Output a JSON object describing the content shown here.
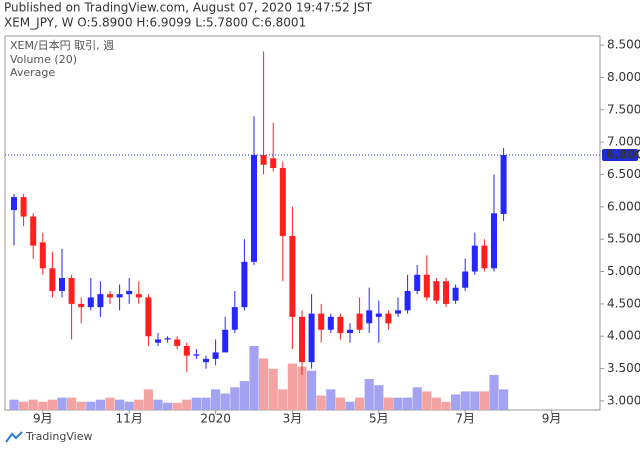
{
  "chart_data": {
    "type": "candlestick",
    "title": "Published on TradingView.com, August 07, 2020 19:47:52 JST",
    "subtitle": "XEM_JPY, W O:5.8900 H:6.9099 L:5.7800 C:6.8001",
    "legend": [
      "XEM/日本円 取引, 週",
      "Volume (20)",
      "Average"
    ],
    "brand": "TradingView",
    "categories": [
      null,
      null,
      null,
      "9月",
      null,
      null,
      null,
      null,
      null,
      null,
      null,
      null,
      "11月",
      null,
      null,
      null,
      null,
      null,
      null,
      null,
      null,
      "2020",
      null,
      null,
      null,
      null,
      null,
      null,
      null,
      "3月",
      null,
      null,
      null,
      null,
      null,
      null,
      null,
      null,
      "5月",
      null,
      null,
      null,
      null,
      null,
      null,
      null,
      null,
      "7月",
      null,
      null,
      null,
      null,
      null,
      null,
      null,
      null,
      "9月"
    ],
    "open": [
      5.95,
      6.15,
      5.85,
      5.45,
      5.05,
      4.7,
      4.9,
      4.5,
      4.45,
      4.45,
      4.65,
      4.6,
      4.65,
      4.65,
      4.6,
      3.9,
      3.95,
      3.95,
      3.85,
      3.7,
      3.6,
      3.65,
      3.75,
      4.1,
      4.45,
      5.15,
      6.8,
      6.75,
      6.6,
      5.55,
      4.3,
      3.6,
      4.35,
      4.1,
      4.3,
      4.05,
      4.35,
      4.2,
      4.3,
      4.35,
      4.35,
      4.4,
      4.7,
      4.95,
      4.85,
      4.85,
      4.55,
      4.75,
      5.0,
      5.4,
      5.05,
      5.89,
      null,
      null,
      null,
      null,
      null
    ],
    "high": [
      6.2,
      6.2,
      5.9,
      5.6,
      5.3,
      5.35,
      4.95,
      4.6,
      4.9,
      4.85,
      4.7,
      4.8,
      4.9,
      4.85,
      4.65,
      4.05,
      4.0,
      4.0,
      3.9,
      3.8,
      3.7,
      3.95,
      4.3,
      4.7,
      5.5,
      7.4,
      8.4,
      7.3,
      6.7,
      6.0,
      4.4,
      4.65,
      4.5,
      4.35,
      4.35,
      4.2,
      4.6,
      4.75,
      4.55,
      4.4,
      4.6,
      4.95,
      5.1,
      5.25,
      4.9,
      4.9,
      4.8,
      5.2,
      5.6,
      5.5,
      6.5,
      6.9099,
      null,
      null,
      null,
      null,
      null
    ],
    "low": [
      5.4,
      5.7,
      5.2,
      4.95,
      4.6,
      4.6,
      3.95,
      4.2,
      4.4,
      4.3,
      4.5,
      4.4,
      4.5,
      4.5,
      3.85,
      3.85,
      3.9,
      3.8,
      3.45,
      3.65,
      3.5,
      3.55,
      3.75,
      4.05,
      4.4,
      5.1,
      6.5,
      6.55,
      4.85,
      3.8,
      3.4,
      3.5,
      3.9,
      4.05,
      3.95,
      3.9,
      4.05,
      4.05,
      3.9,
      4.1,
      4.3,
      4.35,
      4.65,
      4.55,
      4.5,
      4.45,
      4.5,
      4.7,
      4.95,
      5.0,
      5.0,
      5.78,
      null,
      null,
      null,
      null,
      null
    ],
    "close": [
      6.15,
      5.85,
      5.4,
      5.05,
      4.7,
      4.9,
      4.5,
      4.45,
      4.6,
      4.65,
      4.6,
      4.65,
      4.7,
      4.6,
      4.0,
      3.95,
      3.97,
      3.85,
      3.7,
      3.72,
      3.65,
      3.75,
      4.1,
      4.45,
      5.15,
      6.8,
      6.65,
      6.6,
      5.55,
      4.3,
      3.6,
      4.35,
      4.1,
      4.3,
      4.05,
      4.1,
      4.1,
      4.4,
      4.35,
      4.2,
      4.4,
      4.7,
      4.95,
      4.6,
      4.55,
      4.5,
      4.75,
      5.0,
      5.4,
      5.05,
      5.9,
      6.8001,
      null,
      null,
      null,
      null,
      null
    ],
    "volume": [
      10,
      8,
      10,
      8,
      10,
      12,
      12,
      8,
      8,
      10,
      12,
      10,
      8,
      10,
      20,
      10,
      7,
      7,
      10,
      12,
      12,
      20,
      16,
      22,
      28,
      62,
      50,
      40,
      20,
      45,
      42,
      38,
      14,
      20,
      12,
      8,
      12,
      30,
      24,
      12,
      12,
      12,
      22,
      18,
      12,
      8,
      15,
      18,
      18,
      18,
      34,
      20,
      null,
      null,
      null,
      null,
      null
    ],
    "up_color": "#2626ff",
    "down_color": "#ff1f1f",
    "up_volume_color": "#a3a3f2",
    "down_volume_color": "#f4a3a3",
    "ylim": [
      2.86,
      8.64
    ],
    "yticks": [
      {
        "value": 3,
        "label": "3.0000"
      },
      {
        "value": 3.5,
        "label": "3.5000"
      },
      {
        "value": 4,
        "label": "4.0000"
      },
      {
        "value": 4.5,
        "label": "4.5000"
      },
      {
        "value": 5,
        "label": "5.0000"
      },
      {
        "value": 5.5,
        "label": "5.5000"
      },
      {
        "value": 6,
        "label": "6.0000"
      },
      {
        "value": 6.5,
        "label": "6.5000"
      },
      {
        "value": 7,
        "label": "7.0000"
      },
      {
        "value": 7.5,
        "label": "7.5000"
      },
      {
        "value": 8,
        "label": "8.0000"
      },
      {
        "value": 8.5,
        "label": "8.5000"
      }
    ],
    "last_price": {
      "value": 6.8001,
      "label": "6.8001"
    },
    "last_price_color": "#1f2bd6"
  }
}
